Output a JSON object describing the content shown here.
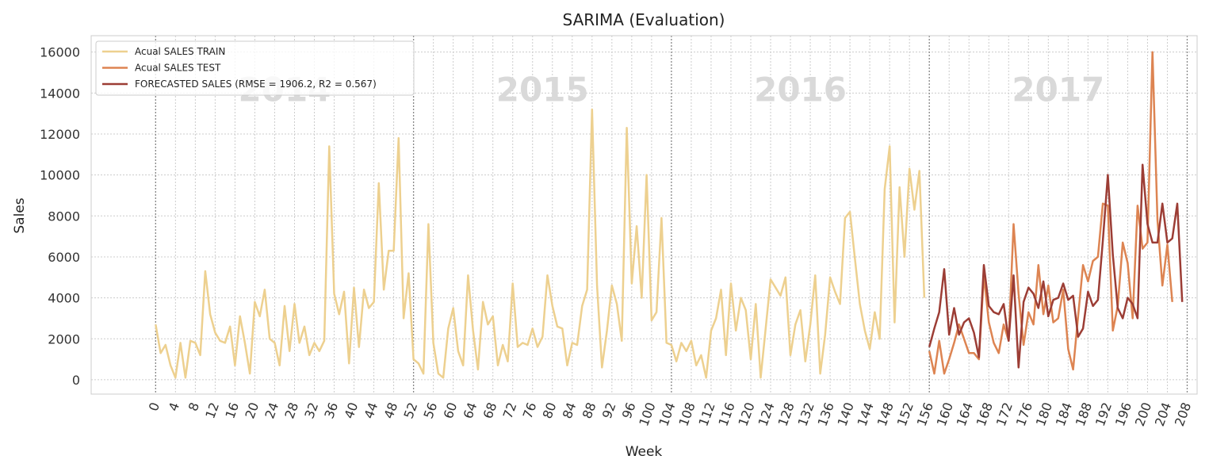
{
  "chart_data": {
    "type": "line",
    "title": "SARIMA (Evaluation)",
    "xlabel": "Week",
    "ylabel": "Sales",
    "xlim": [
      -13,
      210
    ],
    "ylim": [
      -700,
      16800
    ],
    "x_ticks": [
      0,
      4,
      8,
      12,
      16,
      20,
      24,
      28,
      32,
      36,
      40,
      44,
      48,
      52,
      56,
      60,
      64,
      68,
      72,
      76,
      80,
      84,
      88,
      92,
      96,
      100,
      104,
      108,
      112,
      116,
      120,
      124,
      128,
      132,
      136,
      140,
      144,
      148,
      152,
      156,
      160,
      164,
      168,
      172,
      176,
      180,
      184,
      188,
      192,
      196,
      200,
      204,
      208
    ],
    "y_ticks": [
      0,
      2000,
      4000,
      6000,
      8000,
      10000,
      12000,
      14000,
      16000
    ],
    "grid": true,
    "legend_position": "top-left",
    "year_dividers": [
      0,
      52,
      104,
      156,
      208
    ],
    "year_labels": [
      {
        "text": "2014",
        "x": 26
      },
      {
        "text": "2015",
        "x": 78
      },
      {
        "text": "2016",
        "x": 130
      },
      {
        "text": "2017",
        "x": 182
      }
    ],
    "series": [
      {
        "name": "Acual SALES TRAIN",
        "color": "#edd08f",
        "x_start": 0,
        "values": [
          2700,
          1300,
          1700,
          700,
          100,
          1800,
          100,
          1900,
          1800,
          1200,
          5300,
          3200,
          2300,
          1900,
          1800,
          2600,
          700,
          3100,
          1800,
          300,
          3800,
          3100,
          4400,
          2000,
          1800,
          700,
          3600,
          1400,
          3700,
          1800,
          2600,
          1200,
          1800,
          1400,
          1900,
          11400,
          4200,
          3200,
          4300,
          800,
          4500,
          1600,
          4400,
          3500,
          3800,
          9600,
          4400,
          6300,
          6300,
          11800,
          3000,
          5200,
          1000,
          800,
          300,
          7600,
          1800,
          300,
          100,
          2500,
          3500,
          1400,
          700,
          5100,
          2400,
          500,
          3800,
          2700,
          3100,
          700,
          1700,
          900,
          4700,
          1600,
          1800,
          1700,
          2500,
          1600,
          2100,
          5100,
          3600,
          2600,
          2500,
          700,
          1800,
          1700,
          3600,
          4400,
          13200,
          4600,
          600,
          2400,
          4600,
          3700,
          1900,
          12300,
          4700,
          7500,
          4000,
          10000,
          2900,
          3300,
          7900,
          1800,
          1700,
          900,
          1800,
          1400,
          1900,
          700,
          1200,
          100,
          2400,
          3000,
          4400,
          1200,
          4700,
          2400,
          4000,
          3400,
          1000,
          3700,
          100,
          2500,
          4900,
          4500,
          4100,
          5000,
          1200,
          2700,
          3400,
          900,
          2700,
          5100,
          300,
          2200,
          5000,
          4300,
          3700,
          7900,
          8200,
          5900,
          3700,
          2400,
          1500,
          3300,
          2000,
          9300,
          11400,
          2800,
          9400,
          6000,
          10300,
          8300,
          10200,
          4000
        ]
      },
      {
        "name": "Acual SALES TEST",
        "color": "#dd8452",
        "x_start": 156,
        "values": [
          1400,
          300,
          1900,
          300,
          1000,
          1800,
          2700,
          2000,
          1300,
          1300,
          1000,
          5100,
          2800,
          1800,
          1300,
          2700,
          1900,
          7600,
          4200,
          1700,
          3300,
          2700,
          5600,
          3200,
          4600,
          2800,
          3000,
          4400,
          1500,
          500,
          3100,
          5600,
          4800,
          5800,
          6000,
          8600,
          8500,
          2400,
          3600,
          6700,
          5700,
          3000,
          8500,
          6400,
          6700,
          16000,
          7800,
          4600,
          6600,
          3800
        ]
      },
      {
        "name": "FORECASTED SALES (RMSE = 1906.2, R2 = 0.567)",
        "color": "#9c3d35",
        "x_start": 156,
        "values": [
          1600,
          2500,
          3300,
          5400,
          2200,
          3500,
          2200,
          2800,
          3000,
          2300,
          1100,
          5600,
          3600,
          3300,
          3200,
          3700,
          1900,
          5100,
          600,
          3800,
          4500,
          4200,
          3500,
          4800,
          3100,
          3900,
          4000,
          4700,
          3900,
          4100,
          2100,
          2500,
          4300,
          3600,
          3900,
          6800,
          10000,
          6100,
          3500,
          3000,
          4000,
          3700,
          3000,
          10500,
          7600,
          6700,
          6700,
          8600,
          6700,
          6900,
          8600,
          3800
        ]
      }
    ]
  }
}
